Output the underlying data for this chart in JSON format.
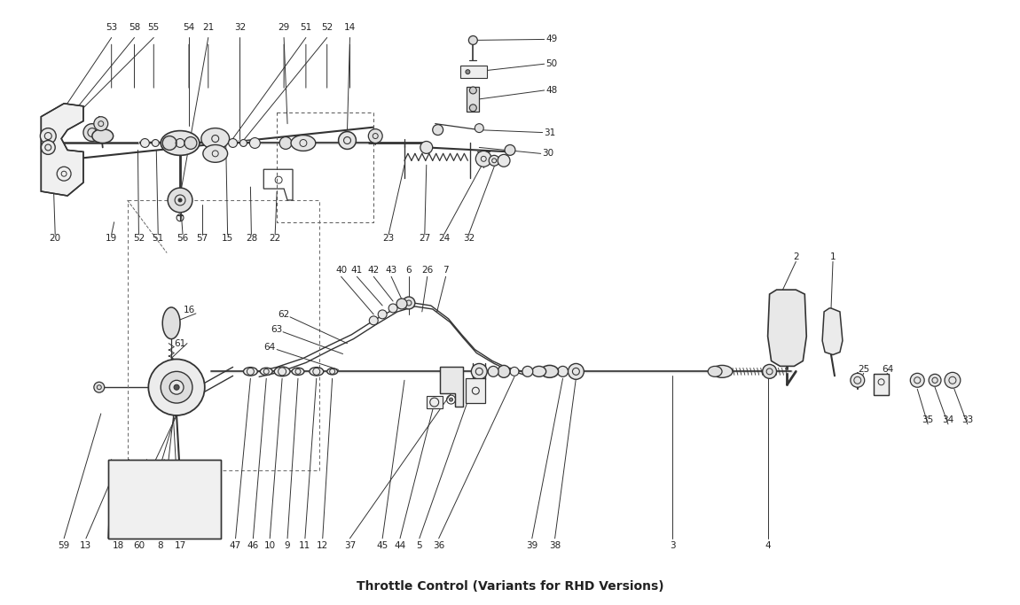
{
  "title": "Throttle Control (Variants for RHD Versions)",
  "bg": "#ffffff",
  "lc": "#333333",
  "tc": "#222222",
  "fw": 11.5,
  "fh": 6.83,
  "dpi": 100,
  "upper_labels_top": [
    [
      122,
      28,
      "53"
    ],
    [
      148,
      28,
      "58"
    ],
    [
      170,
      28,
      "55"
    ],
    [
      210,
      28,
      "54"
    ],
    [
      232,
      28,
      "21"
    ],
    [
      268,
      28,
      "32"
    ],
    [
      318,
      28,
      "29"
    ],
    [
      343,
      28,
      "51"
    ],
    [
      367,
      28,
      "52"
    ],
    [
      393,
      28,
      "14"
    ]
  ],
  "upper_labels_bot": [
    [
      58,
      268,
      "20"
    ],
    [
      122,
      268,
      "19"
    ],
    [
      153,
      268,
      "52"
    ],
    [
      175,
      268,
      "51"
    ],
    [
      203,
      268,
      "56"
    ],
    [
      225,
      268,
      "57"
    ],
    [
      254,
      268,
      "15"
    ],
    [
      281,
      268,
      "28"
    ],
    [
      308,
      268,
      "22"
    ],
    [
      437,
      268,
      "23"
    ],
    [
      478,
      268,
      "27"
    ],
    [
      500,
      268,
      "24"
    ],
    [
      528,
      268,
      "32"
    ]
  ],
  "side_labels_right": [
    [
      622,
      42,
      "49"
    ],
    [
      622,
      70,
      "50"
    ],
    [
      622,
      100,
      "48"
    ],
    [
      620,
      148,
      "31"
    ],
    [
      618,
      172,
      "30"
    ]
  ],
  "lower_top_labels": [
    [
      383,
      305,
      "40"
    ],
    [
      401,
      305,
      "41"
    ],
    [
      420,
      305,
      "42"
    ],
    [
      440,
      305,
      "43"
    ],
    [
      460,
      305,
      "6"
    ],
    [
      481,
      305,
      "26"
    ],
    [
      502,
      305,
      "7"
    ]
  ],
  "lower_left_labels": [
    [
      210,
      350,
      "16"
    ],
    [
      200,
      388,
      "61"
    ],
    [
      318,
      355,
      "62"
    ],
    [
      310,
      372,
      "63"
    ],
    [
      302,
      392,
      "64"
    ]
  ],
  "lower_bot_labels": [
    [
      68,
      618,
      "59"
    ],
    [
      93,
      618,
      "13"
    ],
    [
      130,
      618,
      "18"
    ],
    [
      153,
      618,
      "60"
    ],
    [
      177,
      618,
      "8"
    ],
    [
      200,
      618,
      "17"
    ],
    [
      263,
      618,
      "47"
    ],
    [
      283,
      618,
      "46"
    ],
    [
      302,
      618,
      "10"
    ],
    [
      322,
      618,
      "9"
    ],
    [
      342,
      618,
      "11"
    ],
    [
      362,
      618,
      "12"
    ],
    [
      393,
      618,
      "37"
    ],
    [
      430,
      618,
      "45"
    ],
    [
      450,
      618,
      "44"
    ],
    [
      472,
      618,
      "5"
    ],
    [
      494,
      618,
      "36"
    ],
    [
      600,
      618,
      "39"
    ],
    [
      626,
      618,
      "38"
    ],
    [
      760,
      618,
      "3"
    ],
    [
      868,
      618,
      "4"
    ]
  ],
  "right_labels": [
    [
      900,
      290,
      "2"
    ],
    [
      942,
      290,
      "1"
    ],
    [
      977,
      418,
      "25"
    ],
    [
      1004,
      418,
      "64"
    ],
    [
      1050,
      475,
      "35"
    ],
    [
      1073,
      475,
      "34"
    ],
    [
      1095,
      475,
      "33"
    ]
  ]
}
